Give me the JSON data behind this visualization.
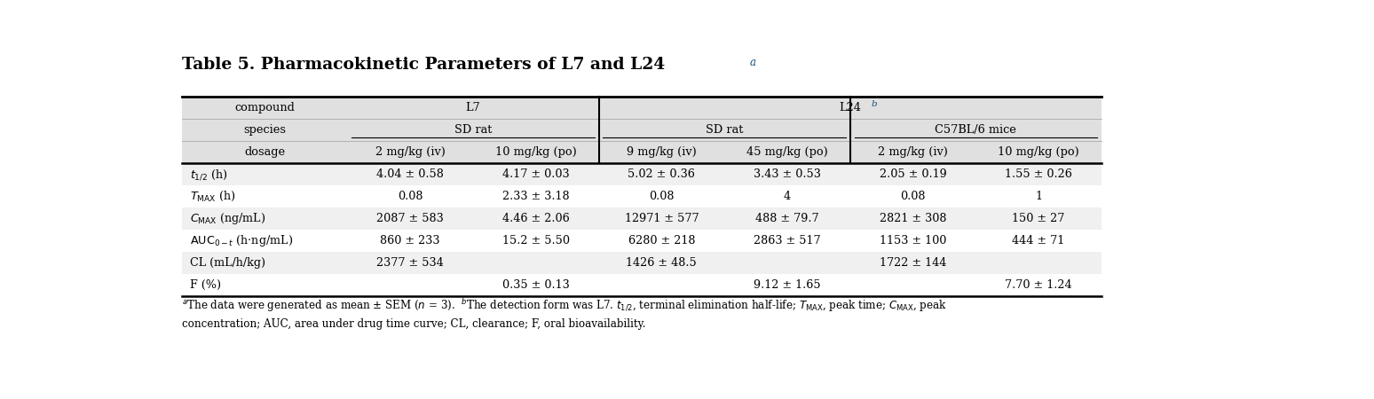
{
  "title": "Table 5. Pharmacokinetic Parameters of L7 and L24",
  "title_superscript": "a",
  "header_bg": "#e0e0e0",
  "row_bg_odd": "#f0f0f0",
  "row_bg_even": "#ffffff",
  "columns": [
    "dosage",
    "2 mg/kg (iv)",
    "10 mg/kg (po)",
    "9 mg/kg (iv)",
    "45 mg/kg (po)",
    "2 mg/kg (iv)",
    "10 mg/kg (po)"
  ],
  "rows": [
    {
      "param": "t_{1/2} (h)",
      "values": [
        "4.04 ± 0.58",
        "4.17 ± 0.03",
        "5.02 ± 0.36",
        "3.43 ± 0.53",
        "2.05 ± 0.19",
        "1.55 ± 0.26"
      ]
    },
    {
      "param": "T_MAX (h)",
      "values": [
        "0.08",
        "2.33 ± 3.18",
        "0.08",
        "4",
        "0.08",
        "1"
      ]
    },
    {
      "param": "C_MAX (ng/mL)",
      "values": [
        "2087 ± 583",
        "4.46 ± 2.06",
        "12971 ± 577",
        "488 ± 79.7",
        "2821 ± 308",
        "150 ± 27"
      ]
    },
    {
      "param": "AUC_{0-t} (h ng/mL)",
      "values": [
        "860 ± 233",
        "15.2 ± 5.50",
        "6280 ± 218",
        "2863 ± 517",
        "1153 ± 100",
        "444 ± 71"
      ]
    },
    {
      "param": "CL (mL/h/kg)",
      "values": [
        "2377 ± 534",
        "",
        "1426 ± 48.5",
        "",
        "1722 ± 144",
        ""
      ]
    },
    {
      "param": "F (%)",
      "values": [
        "",
        "0.35 ± 0.13",
        "",
        "9.12 ± 1.65",
        "",
        "7.70 ± 1.24"
      ]
    }
  ]
}
